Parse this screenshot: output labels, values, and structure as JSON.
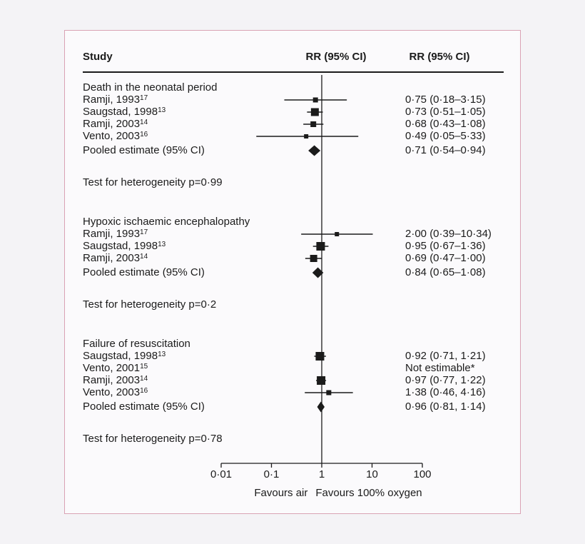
{
  "chart_data": {
    "type": "forest",
    "x_scale": "log",
    "xlim": [
      0.01,
      100
    ],
    "columns": {
      "study": "Study",
      "plot": "RR (95% CI)",
      "values": "RR (95% CI)"
    },
    "axis": {
      "tick_labels": [
        "0·01",
        "0·1",
        "1",
        "10",
        "100"
      ],
      "tick_values": [
        0.01,
        0.1,
        1,
        10,
        100
      ],
      "left_label": "Favours air",
      "right_label": "Favours 100% oxygen"
    },
    "groups": [
      {
        "title": "Death in the neonatal period",
        "studies": [
          {
            "name": "Ramji, 1993",
            "ref": "17",
            "rr": 0.75,
            "lo": 0.18,
            "hi": 3.15,
            "value_text": "0·75 (0·18–3·15)",
            "marker": 7
          },
          {
            "name": "Saugstad, 1998",
            "ref": "13",
            "rr": 0.73,
            "lo": 0.51,
            "hi": 1.05,
            "value_text": "0·73 (0·51–1·05)",
            "marker": 11
          },
          {
            "name": "Ramji, 2003",
            "ref": "14",
            "rr": 0.68,
            "lo": 0.43,
            "hi": 1.08,
            "value_text": "0·68 (0·43–1·08)",
            "marker": 8
          },
          {
            "name": "Vento, 2003",
            "ref": "16",
            "rr": 0.49,
            "lo": 0.05,
            "hi": 5.33,
            "value_text": "0·49 (0·05–5·33)",
            "marker": 6
          }
        ],
        "pooled": {
          "label": "Pooled estimate (95% CI)",
          "rr": 0.71,
          "lo": 0.54,
          "hi": 0.94,
          "value_text": "0·71 (0·54–0·94)"
        },
        "heterogeneity": "Test for heterogeneity p=0·99"
      },
      {
        "title": "Hypoxic ischaemic encephalopathy",
        "studies": [
          {
            "name": "Ramji, 1993",
            "ref": "17",
            "rr": 2.0,
            "lo": 0.39,
            "hi": 10.34,
            "value_text": "2·00 (0·39–10·34)",
            "marker": 6
          },
          {
            "name": "Saugstad, 1998",
            "ref": "13",
            "rr": 0.95,
            "lo": 0.67,
            "hi": 1.36,
            "value_text": "0·95 (0·67–1·36)",
            "marker": 12
          },
          {
            "name": "Ramji, 2003",
            "ref": "14",
            "rr": 0.69,
            "lo": 0.47,
            "hi": 1.0,
            "value_text": "0·69 (0·47–1·00)",
            "marker": 10
          }
        ],
        "pooled": {
          "label": "Pooled estimate (95% CI)",
          "rr": 0.84,
          "lo": 0.65,
          "hi": 1.08,
          "value_text": "0·84 (0·65–1·08)"
        },
        "heterogeneity": "Test for heterogeneity p=0·2"
      },
      {
        "title": "Failure of resuscitation",
        "studies": [
          {
            "name": "Saugstad, 1998",
            "ref": "13",
            "rr": 0.92,
            "lo": 0.71,
            "hi": 1.21,
            "value_text": "0·92 (0·71, 1·21)",
            "marker": 12
          },
          {
            "name": "Vento, 2001",
            "ref": "15",
            "rr": null,
            "lo": null,
            "hi": null,
            "value_text": "Not estimable*",
            "marker": 0
          },
          {
            "name": "Ramji, 2003",
            "ref": "14",
            "rr": 0.97,
            "lo": 0.77,
            "hi": 1.22,
            "value_text": "0·97 (0·77, 1·22)",
            "marker": 12
          },
          {
            "name": "Vento, 2003",
            "ref": "16",
            "rr": 1.38,
            "lo": 0.46,
            "hi": 4.16,
            "value_text": "1·38 (0·46, 4·16)",
            "marker": 7
          }
        ],
        "pooled": {
          "label": "Pooled estimate (95% CI)",
          "rr": 0.96,
          "lo": 0.81,
          "hi": 1.14,
          "value_text": "0·96 (0·81, 1·14)"
        },
        "heterogeneity": "Test for heterogeneity  p=0·78"
      }
    ]
  }
}
